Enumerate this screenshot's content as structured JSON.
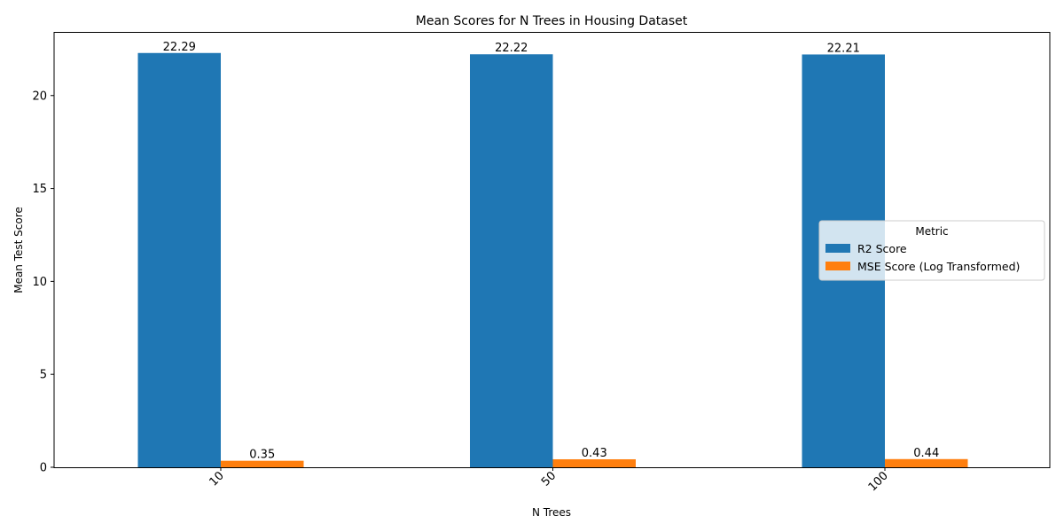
{
  "chart_data": {
    "type": "bar",
    "title": "Mean Scores for N Trees in Housing Dataset",
    "xlabel": "N Trees",
    "ylabel": "Mean Test Score",
    "categories": [
      "10",
      "50",
      "100"
    ],
    "series": [
      {
        "name": "R2 Score",
        "values": [
          22.29,
          22.22,
          22.21
        ],
        "color": "#1f77b4"
      },
      {
        "name": "MSE Score (Log Transformed)",
        "values": [
          0.35,
          0.43,
          0.44
        ],
        "color": "#ff7f0e"
      }
    ],
    "data_labels": [
      [
        "22.29",
        "22.22",
        "22.21"
      ],
      [
        "0.35",
        "0.43",
        "0.44"
      ]
    ],
    "ylim": [
      0,
      23.4
    ],
    "yticks": [
      0,
      5,
      10,
      15,
      20
    ],
    "legend": {
      "title": "Metric",
      "position": "center-right"
    },
    "grid": false
  }
}
